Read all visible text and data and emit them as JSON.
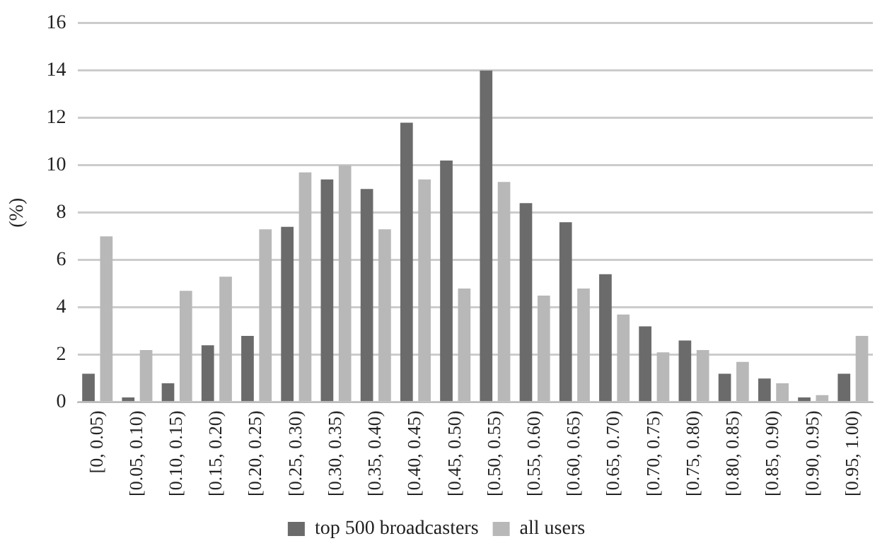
{
  "chart_data": {
    "type": "bar",
    "ylabel": "(%)",
    "categories": [
      "[0, 0.05)",
      "[0.05, 0.10)",
      "[0.10, 0.15)",
      "[0.15, 0.20)",
      "[0.20, 0.25)",
      "[0.25, 0.30)",
      "[0.30, 0.35)",
      "[0.35, 0.40)",
      "[0.40, 0.45)",
      "[0.45, 0.50)",
      "[0.50, 0.55)",
      "[0.55, 0.60)",
      "[0.60, 0.65)",
      "[0.65, 0.70)",
      "[0.70, 0.75)",
      "[0.75, 0.80)",
      "[0.80, 0.85)",
      "[0.85, 0.90)",
      "[0.90, 0.95)",
      "[0.95, 1.00)"
    ],
    "series": [
      {
        "name": "top 500 broadcasters",
        "color": "#6b6b6b",
        "values": [
          1.2,
          0.2,
          0.8,
          2.4,
          2.8,
          7.4,
          9.4,
          9.0,
          11.8,
          10.2,
          14.0,
          8.4,
          7.6,
          5.4,
          3.2,
          2.6,
          1.2,
          1.0,
          0.2,
          1.2
        ]
      },
      {
        "name": "all users",
        "color": "#b8b8b8",
        "values": [
          7.0,
          2.2,
          4.7,
          5.3,
          7.3,
          9.7,
          10.0,
          7.3,
          9.4,
          4.8,
          9.3,
          4.5,
          4.8,
          3.7,
          2.1,
          2.2,
          1.7,
          0.8,
          0.3,
          2.8
        ]
      }
    ],
    "ylim": [
      0,
      16
    ],
    "yticks": [
      0,
      2,
      4,
      6,
      8,
      10,
      12,
      14,
      16
    ],
    "grid": "y",
    "legend": "bottom"
  }
}
